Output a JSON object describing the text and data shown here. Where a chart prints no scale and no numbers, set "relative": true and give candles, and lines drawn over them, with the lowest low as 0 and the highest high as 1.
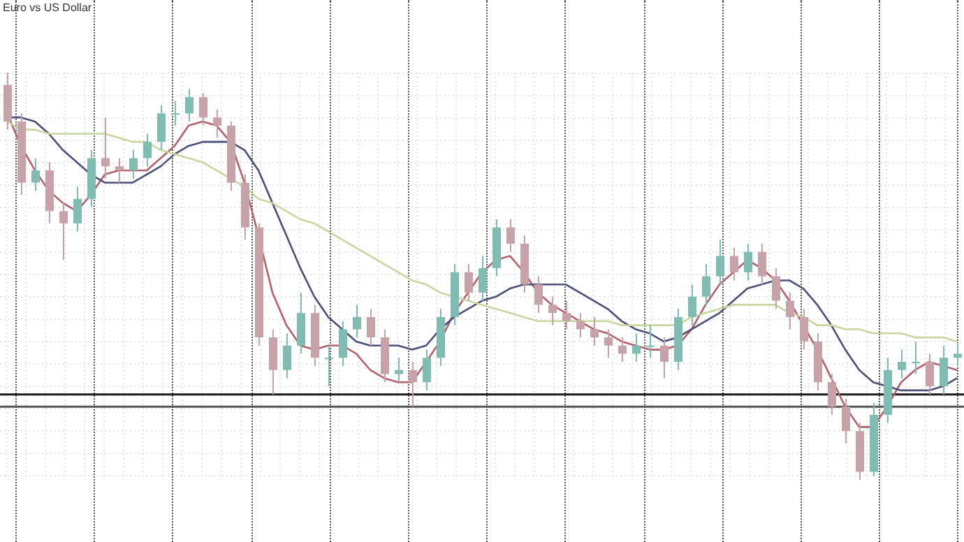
{
  "chart_data": {
    "type": "candlestick",
    "title": "Euro vs US Dollar",
    "relative": true,
    "grid": true,
    "legend": false,
    "marker": "none",
    "categories": [
      null,
      null,
      null,
      null,
      null,
      null,
      null,
      null,
      null,
      null,
      null,
      null,
      null,
      null,
      null,
      null,
      null,
      null,
      null,
      null,
      null,
      null,
      null,
      null,
      null,
      null,
      null,
      null,
      null,
      null,
      null,
      null,
      null,
      null,
      null,
      null,
      null,
      null,
      null,
      null,
      null,
      null,
      null,
      null,
      null,
      null,
      null,
      null,
      null,
      null,
      null,
      null,
      null,
      null,
      null,
      null,
      null,
      null,
      null,
      null,
      null,
      null,
      null,
      null,
      null,
      null,
      null,
      null,
      null
    ],
    "ref_lines": [
      {
        "axis": "y",
        "value": 0.21,
        "color": "#1a1a1a"
      },
      {
        "axis": "y",
        "value": 0.18,
        "color": "#555555"
      }
    ],
    "series": [
      {
        "type": "line",
        "color": "#c8d6a0",
        "values": [
          0.88,
          0.86,
          0.86,
          0.85,
          0.85,
          0.85,
          0.85,
          0.85,
          0.84,
          0.83,
          0.83,
          0.81,
          0.8,
          0.79,
          0.78,
          0.76,
          0.74,
          0.72,
          0.69,
          0.68,
          0.66,
          0.64,
          0.63,
          0.61,
          0.59,
          0.57,
          0.55,
          0.53,
          0.51,
          0.49,
          0.48,
          0.46,
          0.45,
          0.44,
          0.43,
          0.42,
          0.41,
          0.4,
          0.39,
          0.39,
          0.39,
          0.39,
          0.39,
          0.39,
          0.38,
          0.38,
          0.38,
          0.38,
          0.38,
          0.4,
          0.41,
          0.42,
          0.43,
          0.43,
          0.43,
          0.43,
          0.41,
          0.4,
          0.38,
          0.38,
          0.37,
          0.37,
          0.36,
          0.36,
          0.36,
          0.35,
          0.35,
          0.35,
          0.34
        ]
      },
      {
        "type": "line",
        "color": "#4b4f7a",
        "values": [
          0.89,
          0.89,
          0.88,
          0.85,
          0.81,
          0.78,
          0.75,
          0.73,
          0.73,
          0.73,
          0.75,
          0.77,
          0.8,
          0.82,
          0.83,
          0.83,
          0.83,
          0.81,
          0.76,
          0.68,
          0.6,
          0.52,
          0.45,
          0.4,
          0.37,
          0.34,
          0.33,
          0.33,
          0.33,
          0.32,
          0.33,
          0.37,
          0.4,
          0.42,
          0.44,
          0.45,
          0.47,
          0.48,
          0.48,
          0.48,
          0.48,
          0.46,
          0.44,
          0.42,
          0.39,
          0.37,
          0.36,
          0.34,
          0.35,
          0.37,
          0.39,
          0.41,
          0.44,
          0.47,
          0.48,
          0.49,
          0.49,
          0.47,
          0.43,
          0.38,
          0.32,
          0.27,
          0.24,
          0.23,
          0.22,
          0.22,
          0.22,
          0.23,
          0.25
        ]
      },
      {
        "type": "line",
        "color": "#b5606a",
        "values": [
          0.9,
          0.82,
          0.76,
          0.71,
          0.68,
          0.66,
          0.7,
          0.75,
          0.76,
          0.76,
          0.76,
          0.79,
          0.82,
          0.87,
          0.88,
          0.87,
          0.83,
          0.73,
          0.6,
          0.46,
          0.38,
          0.33,
          0.32,
          0.33,
          0.33,
          0.31,
          0.27,
          0.25,
          0.24,
          0.24,
          0.29,
          0.34,
          0.41,
          0.46,
          0.51,
          0.54,
          0.55,
          0.51,
          0.46,
          0.43,
          0.41,
          0.39,
          0.37,
          0.36,
          0.34,
          0.33,
          0.32,
          0.32,
          0.33,
          0.37,
          0.43,
          0.48,
          0.51,
          0.54,
          0.52,
          0.49,
          0.44,
          0.38,
          0.32,
          0.25,
          0.18,
          0.13,
          0.13,
          0.18,
          0.24,
          0.27,
          0.29,
          0.28,
          0.27
        ]
      },
      {
        "type": "candlestick",
        "ohlc": [
          [
            0.97,
            1.0,
            0.86,
            0.88
          ],
          [
            0.88,
            0.9,
            0.7,
            0.73
          ],
          [
            0.73,
            0.79,
            0.71,
            0.76
          ],
          [
            0.76,
            0.78,
            0.63,
            0.66
          ],
          [
            0.66,
            0.68,
            0.54,
            0.63
          ],
          [
            0.63,
            0.72,
            0.61,
            0.69
          ],
          [
            0.69,
            0.81,
            0.67,
            0.79
          ],
          [
            0.79,
            0.89,
            0.74,
            0.77
          ],
          [
            0.77,
            0.79,
            0.73,
            0.76
          ],
          [
            0.76,
            0.81,
            0.74,
            0.79
          ],
          [
            0.79,
            0.85,
            0.77,
            0.83
          ],
          [
            0.83,
            0.92,
            0.81,
            0.9
          ],
          [
            0.9,
            0.93,
            0.87,
            0.9
          ],
          [
            0.9,
            0.96,
            0.88,
            0.94
          ],
          [
            0.94,
            0.95,
            0.87,
            0.89
          ],
          [
            0.89,
            0.91,
            0.84,
            0.87
          ],
          [
            0.87,
            0.88,
            0.71,
            0.73
          ],
          [
            0.73,
            0.75,
            0.59,
            0.62
          ],
          [
            0.62,
            0.63,
            0.33,
            0.35
          ],
          [
            0.35,
            0.37,
            0.21,
            0.27
          ],
          [
            0.27,
            0.36,
            0.25,
            0.33
          ],
          [
            0.33,
            0.46,
            0.31,
            0.41
          ],
          [
            0.41,
            0.43,
            0.28,
            0.3
          ],
          [
            0.3,
            0.33,
            0.23,
            0.3
          ],
          [
            0.3,
            0.39,
            0.28,
            0.37
          ],
          [
            0.37,
            0.43,
            0.35,
            0.4
          ],
          [
            0.4,
            0.42,
            0.33,
            0.35
          ],
          [
            0.35,
            0.37,
            0.24,
            0.26
          ],
          [
            0.26,
            0.3,
            0.24,
            0.27
          ],
          [
            0.27,
            0.29,
            0.18,
            0.24
          ],
          [
            0.24,
            0.32,
            0.22,
            0.3
          ],
          [
            0.3,
            0.42,
            0.28,
            0.4
          ],
          [
            0.4,
            0.53,
            0.38,
            0.51
          ],
          [
            0.51,
            0.53,
            0.44,
            0.46
          ],
          [
            0.46,
            0.55,
            0.44,
            0.52
          ],
          [
            0.52,
            0.64,
            0.5,
            0.62
          ],
          [
            0.62,
            0.64,
            0.56,
            0.58
          ],
          [
            0.58,
            0.6,
            0.46,
            0.48
          ],
          [
            0.48,
            0.5,
            0.41,
            0.43
          ],
          [
            0.43,
            0.45,
            0.38,
            0.41
          ],
          [
            0.41,
            0.44,
            0.37,
            0.39
          ],
          [
            0.39,
            0.41,
            0.35,
            0.37
          ],
          [
            0.37,
            0.4,
            0.33,
            0.35
          ],
          [
            0.35,
            0.37,
            0.3,
            0.33
          ],
          [
            0.33,
            0.35,
            0.29,
            0.31
          ],
          [
            0.31,
            0.36,
            0.29,
            0.33
          ],
          [
            0.33,
            0.38,
            0.3,
            0.33
          ],
          [
            0.33,
            0.35,
            0.25,
            0.29
          ],
          [
            0.29,
            0.42,
            0.27,
            0.4
          ],
          [
            0.4,
            0.48,
            0.38,
            0.45
          ],
          [
            0.45,
            0.53,
            0.43,
            0.5
          ],
          [
            0.5,
            0.59,
            0.48,
            0.55
          ],
          [
            0.55,
            0.57,
            0.49,
            0.51
          ],
          [
            0.51,
            0.58,
            0.49,
            0.56
          ],
          [
            0.56,
            0.58,
            0.48,
            0.5
          ],
          [
            0.5,
            0.52,
            0.42,
            0.44
          ],
          [
            0.44,
            0.46,
            0.37,
            0.4
          ],
          [
            0.4,
            0.42,
            0.32,
            0.34
          ],
          [
            0.34,
            0.36,
            0.22,
            0.24
          ],
          [
            0.24,
            0.26,
            0.16,
            0.18
          ],
          [
            0.18,
            0.2,
            0.09,
            0.12
          ],
          [
            0.12,
            0.14,
            0.0,
            0.02
          ],
          [
            0.02,
            0.19,
            0.01,
            0.16
          ],
          [
            0.16,
            0.3,
            0.14,
            0.27
          ],
          [
            0.27,
            0.32,
            0.25,
            0.29
          ],
          [
            0.29,
            0.34,
            0.26,
            0.29
          ],
          [
            0.29,
            0.31,
            0.21,
            0.23
          ],
          [
            0.23,
            0.33,
            0.21,
            0.3
          ],
          [
            0.3,
            0.34,
            0.28,
            0.31
          ]
        ]
      }
    ]
  }
}
